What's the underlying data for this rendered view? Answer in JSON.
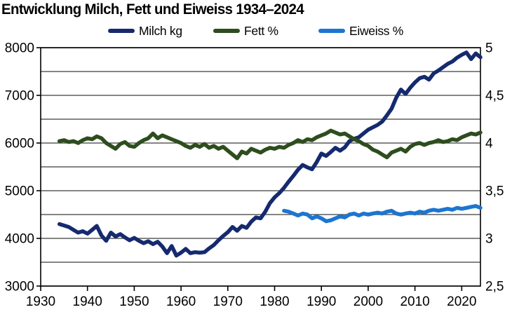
{
  "chart_data": {
    "type": "line",
    "title": "Entwicklung Milch, Fett und Eiweiss 1934–2024",
    "x_axis": {
      "ticks": [
        1930,
        1940,
        1950,
        1960,
        1970,
        1980,
        1990,
        2000,
        2010,
        2020
      ],
      "range": [
        1930,
        2024
      ]
    },
    "y_left": {
      "ticks": [
        8000,
        7000,
        6000,
        5000,
        4000,
        3000
      ],
      "range": [
        3000,
        8000
      ],
      "gridline_step": 500,
      "applies_to": "Milch kg"
    },
    "y_right": {
      "tick_labels": [
        "5",
        "4,5",
        "4",
        "3,5",
        "3",
        "2,5"
      ],
      "tick_values": [
        5,
        4.5,
        4,
        3.5,
        3,
        2.5
      ],
      "range": [
        2.5,
        5
      ],
      "gridline_step": 0.25,
      "applies_to": "Fett % / Eiweiss %"
    },
    "grid": "horizontal-only",
    "legend_position": "top",
    "colors": {
      "milch": "#152A6E",
      "fett": "#2E4D1E",
      "eiweiss": "#1C75D1",
      "gridline": "#3c3c3c",
      "axis": "#000000"
    },
    "series": [
      {
        "name": "Milch kg",
        "axis": "left",
        "start_year": 1934,
        "values": [
          4300,
          4270,
          4240,
          4180,
          4120,
          4150,
          4100,
          4180,
          4260,
          4060,
          3950,
          4120,
          4040,
          4090,
          4020,
          3960,
          4010,
          3950,
          3900,
          3940,
          3880,
          3930,
          3830,
          3690,
          3840,
          3640,
          3700,
          3780,
          3690,
          3710,
          3700,
          3710,
          3790,
          3860,
          3960,
          4050,
          4130,
          4240,
          4160,
          4260,
          4220,
          4350,
          4440,
          4420,
          4560,
          4740,
          4860,
          4950,
          5060,
          5190,
          5310,
          5440,
          5540,
          5490,
          5450,
          5600,
          5780,
          5730,
          5810,
          5900,
          5840,
          5910,
          6040,
          6090,
          6120,
          6200,
          6280,
          6330,
          6380,
          6450,
          6580,
          6720,
          6950,
          7120,
          7030,
          7160,
          7270,
          7360,
          7390,
          7330,
          7460,
          7520,
          7590,
          7660,
          7710,
          7790,
          7850,
          7900,
          7760,
          7880,
          7800
        ]
      },
      {
        "name": "Fett %",
        "axis": "right",
        "start_year": 1934,
        "values": [
          4.02,
          4.03,
          4.01,
          4.02,
          4.0,
          4.03,
          4.05,
          4.04,
          4.07,
          4.05,
          4.0,
          3.97,
          3.94,
          3.99,
          4.01,
          3.97,
          3.96,
          4.0,
          4.03,
          4.05,
          4.1,
          4.05,
          4.08,
          4.06,
          4.04,
          4.02,
          4.0,
          3.97,
          3.95,
          3.98,
          3.96,
          3.99,
          3.95,
          3.97,
          3.94,
          3.96,
          3.92,
          3.88,
          3.84,
          3.91,
          3.89,
          3.94,
          3.92,
          3.9,
          3.93,
          3.95,
          3.94,
          3.96,
          3.95,
          3.98,
          4.0,
          4.03,
          4.01,
          4.04,
          4.03,
          4.06,
          4.08,
          4.1,
          4.13,
          4.11,
          4.09,
          4.1,
          4.07,
          4.04,
          4.02,
          3.99,
          3.97,
          3.93,
          3.91,
          3.88,
          3.85,
          3.9,
          3.92,
          3.94,
          3.91,
          3.96,
          3.99,
          4.0,
          3.98,
          4.0,
          4.01,
          4.03,
          4.01,
          4.02,
          4.04,
          4.03,
          4.06,
          4.08,
          4.1,
          4.09,
          4.11
        ]
      },
      {
        "name": "Eiweiss %",
        "axis": "right",
        "start_year": 1982,
        "values": [
          3.29,
          3.28,
          3.26,
          3.24,
          3.26,
          3.25,
          3.21,
          3.23,
          3.21,
          3.18,
          3.19,
          3.21,
          3.23,
          3.22,
          3.25,
          3.26,
          3.24,
          3.26,
          3.25,
          3.26,
          3.27,
          3.26,
          3.28,
          3.29,
          3.26,
          3.25,
          3.26,
          3.27,
          3.26,
          3.28,
          3.27,
          3.29,
          3.3,
          3.29,
          3.3,
          3.31,
          3.3,
          3.32,
          3.31,
          3.32,
          3.33,
          3.34,
          3.32
        ]
      }
    ]
  }
}
